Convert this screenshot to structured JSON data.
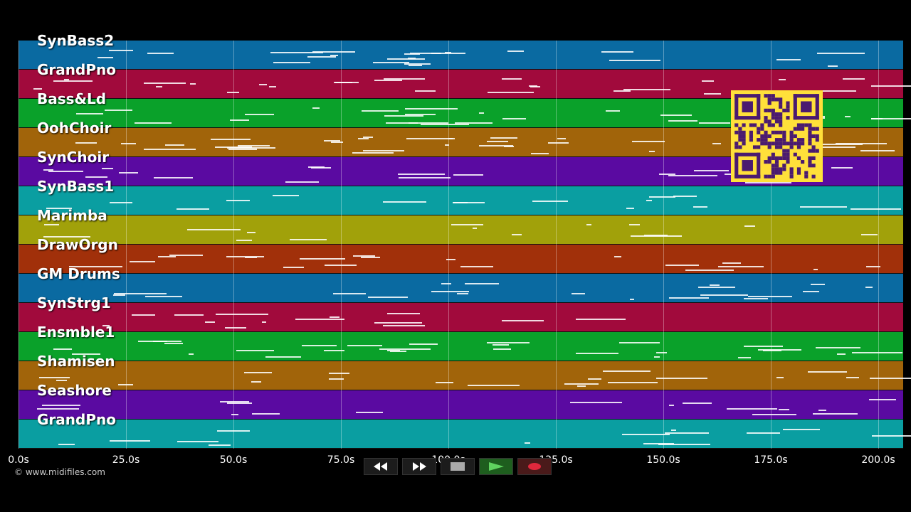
{
  "tracks": [
    {
      "name": "SynBass2",
      "color": "#0a6aa1"
    },
    {
      "name": "GrandPno",
      "color": "#a10a3c"
    },
    {
      "name": "Bass&Ld",
      "color": "#0aa12a"
    },
    {
      "name": "OohChoir",
      "color": "#a1640a"
    },
    {
      "name": "SynChoir",
      "color": "#5a0aa1"
    },
    {
      "name": "SynBass1",
      "color": "#0a9ea1"
    },
    {
      "name": "Marimba",
      "color": "#a1a10a"
    },
    {
      "name": "DrawOrgn",
      "color": "#a1300a"
    },
    {
      "name": "GM Drums",
      "color": "#0a6aa1"
    },
    {
      "name": "SynStrg1",
      "color": "#a10a3c"
    },
    {
      "name": "Ensmble1",
      "color": "#0aa12a"
    },
    {
      "name": "Shamisen",
      "color": "#a1640a"
    },
    {
      "name": "Seashore",
      "color": "#5a0aa1"
    },
    {
      "name": "GrandPno",
      "color": "#0a9ea1"
    }
  ],
  "timeline": {
    "ticks": [
      "0.0s",
      "25.0s",
      "50.0s",
      "75.0s",
      "100.0s",
      "125.0s",
      "150.0s",
      "175.0s",
      "200.0s"
    ],
    "max_seconds": 205
  },
  "copyright": "© www.midifiles.com",
  "transport": {
    "buttons": [
      {
        "name": "rewind-button",
        "icon": "rewind-icon"
      },
      {
        "name": "fast-forward-button",
        "icon": "fast-forward-icon"
      },
      {
        "name": "stop-button",
        "icon": "stop-icon"
      },
      {
        "name": "play-button",
        "icon": "play-icon"
      },
      {
        "name": "record-button",
        "icon": "record-icon"
      }
    ]
  }
}
